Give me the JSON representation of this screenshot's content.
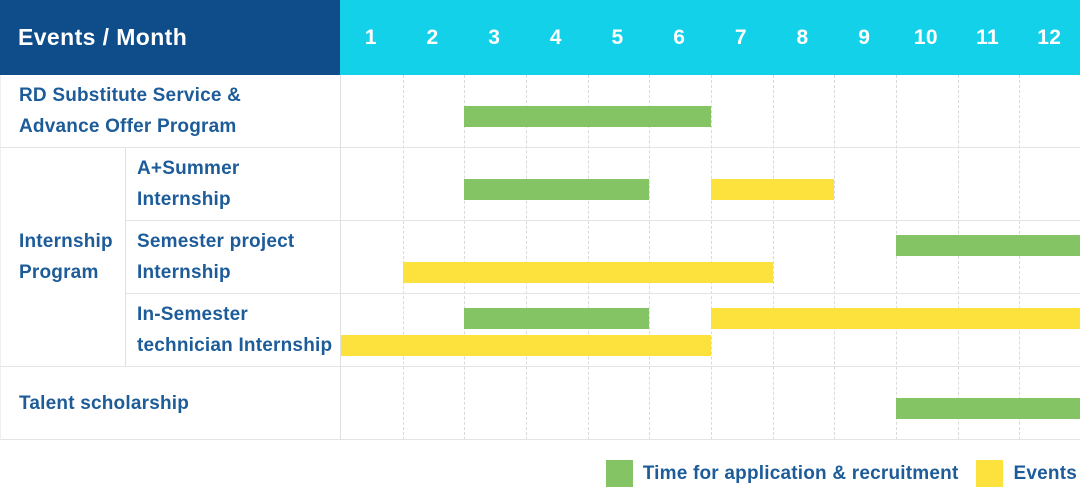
{
  "header": {
    "title": "Events / Month"
  },
  "chart_data": {
    "type": "bar",
    "subtype": "gantt-timeline",
    "x_axis_label": "Month",
    "x_ticks": [
      "1",
      "2",
      "3",
      "4",
      "5",
      "6",
      "7",
      "8",
      "9",
      "10",
      "11",
      "12"
    ],
    "x_range": [
      1,
      12
    ],
    "grid": "vertical-dashed",
    "colors": {
      "recruitment": "#85c464",
      "event": "#fde23e",
      "header_bg": "#0e4d89",
      "month_header_bg": "#12d1e8",
      "label_text": "#1d5c99"
    },
    "row_groups": [
      {
        "label": "Internship\nProgram",
        "row_indexes": [
          1,
          2,
          3
        ]
      }
    ],
    "rows": [
      {
        "label": "RD Substitute Service &\nAdvance Offer Program",
        "group": null,
        "bars": [
          {
            "type": "recruitment",
            "start_month": 3,
            "end_month": 6,
            "band": "single"
          }
        ]
      },
      {
        "label": "A+Summer\nInternship",
        "group": "Internship Program",
        "bars": [
          {
            "type": "recruitment",
            "start_month": 3,
            "end_month": 5,
            "band": "single"
          },
          {
            "type": "event",
            "start_month": 7,
            "end_month": 8,
            "band": "single"
          }
        ]
      },
      {
        "label": "Semester project\nInternship",
        "group": "Internship Program",
        "bars": [
          {
            "type": "recruitment",
            "start_month": 10,
            "end_month": 12,
            "band": "upper"
          },
          {
            "type": "event",
            "start_month": 2,
            "end_month": 7,
            "band": "lower"
          }
        ]
      },
      {
        "label": "In-Semester\ntechnician Internship",
        "group": "Internship Program",
        "bars": [
          {
            "type": "recruitment",
            "start_month": 3,
            "end_month": 5,
            "band": "upper"
          },
          {
            "type": "event",
            "start_month": 7,
            "end_month": 12,
            "band": "upper"
          },
          {
            "type": "event",
            "start_month": 1,
            "end_month": 6,
            "band": "lower"
          }
        ]
      },
      {
        "label": "Talent scholarship",
        "group": null,
        "bars": [
          {
            "type": "recruitment",
            "start_month": 10,
            "end_month": 12,
            "band": "single"
          }
        ]
      }
    ]
  },
  "legend": {
    "items": [
      {
        "label": "Time for application & recruitment",
        "color": "#85c464",
        "type": "recruitment"
      },
      {
        "label": "Events",
        "color": "#fde23e",
        "type": "event"
      }
    ]
  }
}
